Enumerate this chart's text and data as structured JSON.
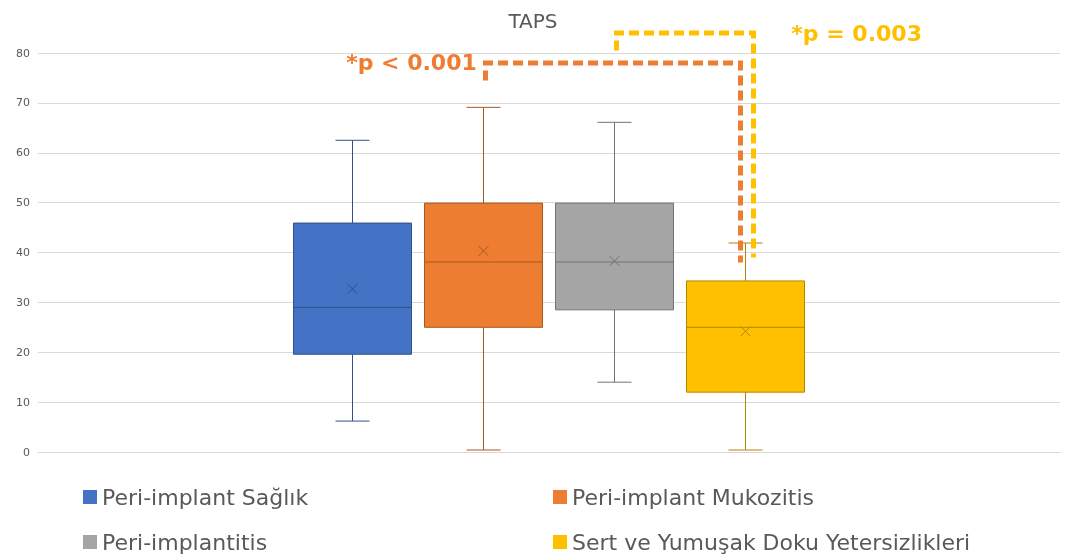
{
  "chart_data": {
    "type": "box",
    "title": "TAPS",
    "categories": [
      null
    ],
    "ylim": [
      0,
      80
    ],
    "yticks": [
      0,
      10,
      20,
      30,
      40,
      50,
      60,
      70,
      80
    ],
    "grid": "y",
    "legend": "bottom",
    "series": [
      {
        "name": "Peri-implant Sağlık",
        "color": "#4472c4",
        "boxes": [
          {
            "low": 6.2,
            "q1": 19.6,
            "median": 29,
            "q3": 45.9,
            "high": 62.5,
            "mean": 32.7
          }
        ]
      },
      {
        "name": "Peri-implant Mukozitis",
        "color": "#ed7d31",
        "boxes": [
          {
            "low": 0.4,
            "q1": 25,
            "median": 38.1,
            "q3": 49.9,
            "high": 69.1,
            "mean": 40.3
          }
        ]
      },
      {
        "name": "Peri-implantitis",
        "color": "#a5a5a5",
        "boxes": [
          {
            "low": 14,
            "q1": 28.5,
            "median": 38.1,
            "q3": 49.9,
            "high": 66.1,
            "mean": 38.3
          }
        ]
      },
      {
        "name": "Sert ve Yumuşak Doku Yetersizlikleri",
        "color": "#ffc000",
        "boxes": [
          {
            "low": 0.4,
            "q1": 12,
            "median": 25,
            "q3": 34.3,
            "high": 41.9,
            "mean": 24.2
          }
        ]
      }
    ],
    "annotations": [
      "*p < 0.001",
      "*p = 0.003"
    ]
  }
}
